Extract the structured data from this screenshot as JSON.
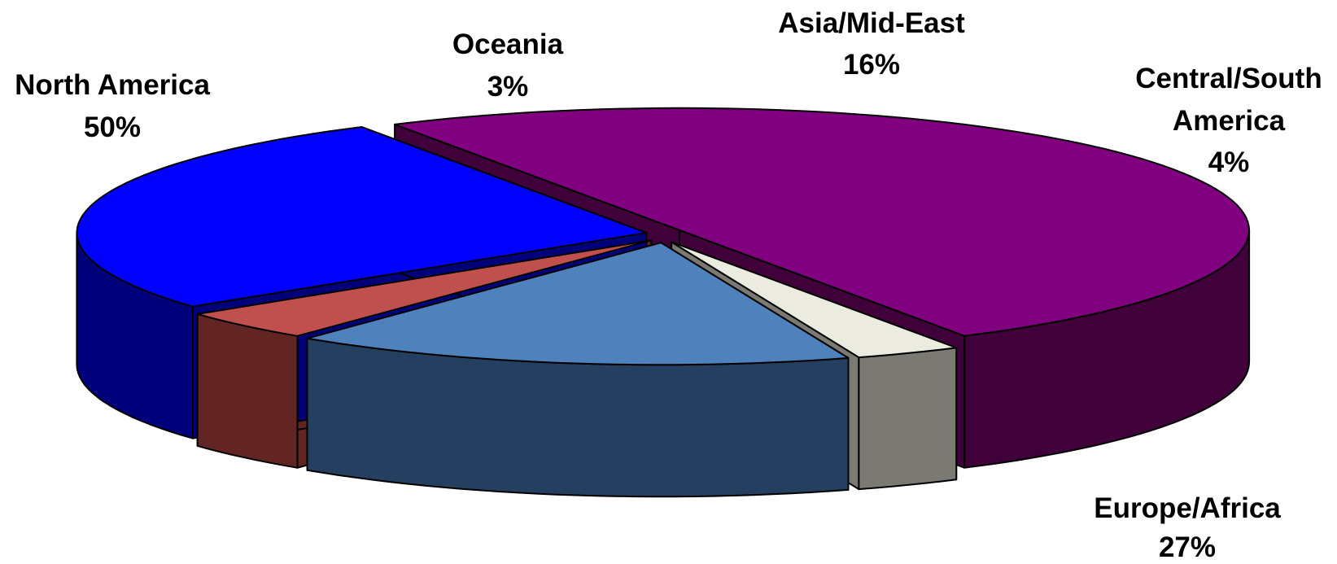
{
  "chart_data": {
    "type": "pie",
    "style": "3d-exploded",
    "title": "",
    "slices": [
      {
        "label": "North America",
        "label_lines": [
          "North America"
        ],
        "value": 50,
        "display": "50%",
        "color": "#800080",
        "side_color": "#40003a"
      },
      {
        "label": "Oceania",
        "label_lines": [
          "Oceania"
        ],
        "value": 3,
        "display": "3%",
        "color": "#ECEBDF",
        "side_color": "#7A7A73"
      },
      {
        "label": "Asia/Mid-East",
        "label_lines": [
          "Asia/Mid-East"
        ],
        "value": 16,
        "display": "16%",
        "color": "#4F81BD",
        "side_color": "#243F60"
      },
      {
        "label": "Central/South America",
        "label_lines": [
          "Central/South",
          "America"
        ],
        "value": 4,
        "display": "4%",
        "color": "#C0504D",
        "side_color": "#632523"
      },
      {
        "label": "Europe/Africa",
        "label_lines": [
          "Europe/Africa"
        ],
        "value": 27,
        "display": "27%",
        "color": "#0000FF",
        "side_color": "#00007A"
      }
    ]
  }
}
